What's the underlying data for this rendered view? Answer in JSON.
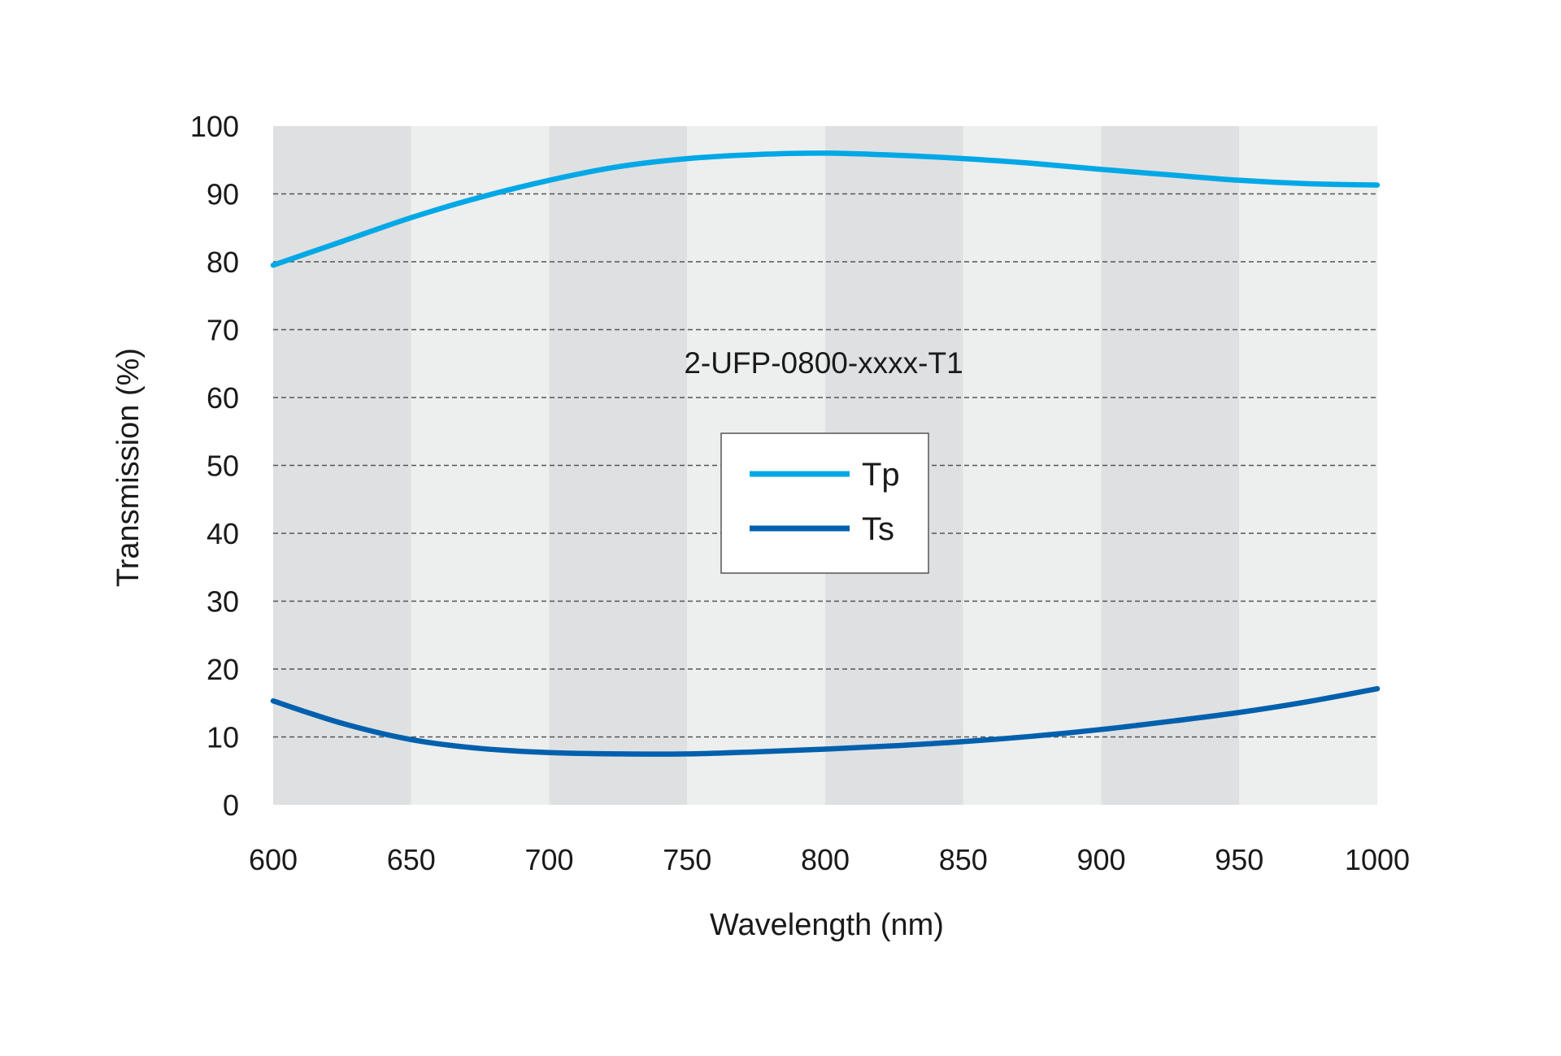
{
  "chart_data": {
    "type": "line",
    "title": "",
    "annotation": "2-UFP-0800-xxxx-T1",
    "xlabel": "Wavelength (nm)",
    "ylabel": "Transmission (%)",
    "xlim": [
      600,
      1000
    ],
    "ylim": [
      0,
      100
    ],
    "xticks": [
      600,
      650,
      700,
      750,
      800,
      850,
      900,
      950,
      1000
    ],
    "yticks": [
      0,
      10,
      20,
      30,
      40,
      50,
      60,
      70,
      80,
      90,
      100
    ],
    "grid": "horizontal dashed",
    "background_bands": "alternating shaded 50 nm bands",
    "legend_position": "center",
    "colors": {
      "band_dark": "#dfe0e2",
      "band_light": "#edeeee",
      "grid": "#555555",
      "legend_border": "#555555"
    },
    "series": [
      {
        "name": "Tp",
        "color": "#00a8e6",
        "x": [
          600,
          625,
          650,
          675,
          700,
          725,
          750,
          775,
          800,
          825,
          850,
          875,
          900,
          925,
          950,
          975,
          1000
        ],
        "y": [
          79.5,
          83.0,
          86.5,
          89.5,
          92.0,
          94.0,
          95.2,
          95.8,
          96.0,
          95.7,
          95.2,
          94.5,
          93.6,
          92.8,
          92.0,
          91.5,
          91.3
        ]
      },
      {
        "name": "Ts",
        "color": "#0060ad",
        "x": [
          600,
          625,
          650,
          675,
          700,
          725,
          750,
          775,
          800,
          825,
          850,
          875,
          900,
          925,
          950,
          975,
          1000
        ],
        "y": [
          15.3,
          12.0,
          9.6,
          8.3,
          7.7,
          7.5,
          7.5,
          7.8,
          8.2,
          8.7,
          9.3,
          10.1,
          11.1,
          12.3,
          13.6,
          15.2,
          17.1
        ]
      }
    ]
  }
}
